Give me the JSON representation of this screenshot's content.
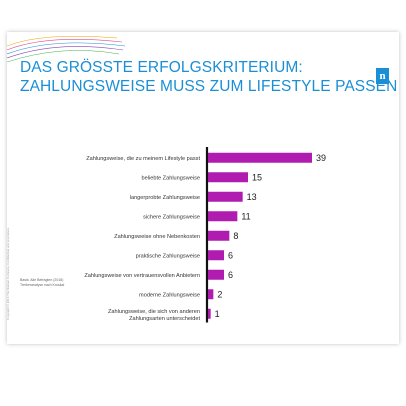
{
  "slide": {
    "title_line1": "DAS GRÖSSTE ERFOLGSKRITERIUM:",
    "title_line2": "ZAHLUNGSWEISE MUSS ZUM LIFESTYLE PASSEN",
    "logo": "n",
    "source_line1": "Basis: Alle Befragten (2016)",
    "source_line2": "Treiberanalyse nach Kruskal",
    "side_copyright": "Copyright © 2016 The Nielsen Company. Confidential and proprietary."
  },
  "colors": {
    "accent": "#1a8fd6",
    "bar": "#b01cb0",
    "axis": "#111111"
  },
  "chart_data": {
    "type": "bar",
    "orientation": "horizontal",
    "categories": [
      "Zahlungsweise, die zu meinem Lifestyle passt",
      "beliebte Zahlungsweise",
      "langerprobte Zahlungsweise",
      "sichere Zahlungsweise",
      "Zahlungsweise ohne Nebenkosten",
      "praktische Zahlungsweise",
      "Zahlungsweise von vertrauensvollen Anbietern",
      "moderne Zahlungsweise",
      "Zahlungsweise, die sich von anderen Zahlungsarten unterscheidet"
    ],
    "values": [
      39,
      15,
      13,
      11,
      8,
      6,
      6,
      2,
      1
    ],
    "xlim": [
      0,
      40
    ],
    "grid": false
  }
}
